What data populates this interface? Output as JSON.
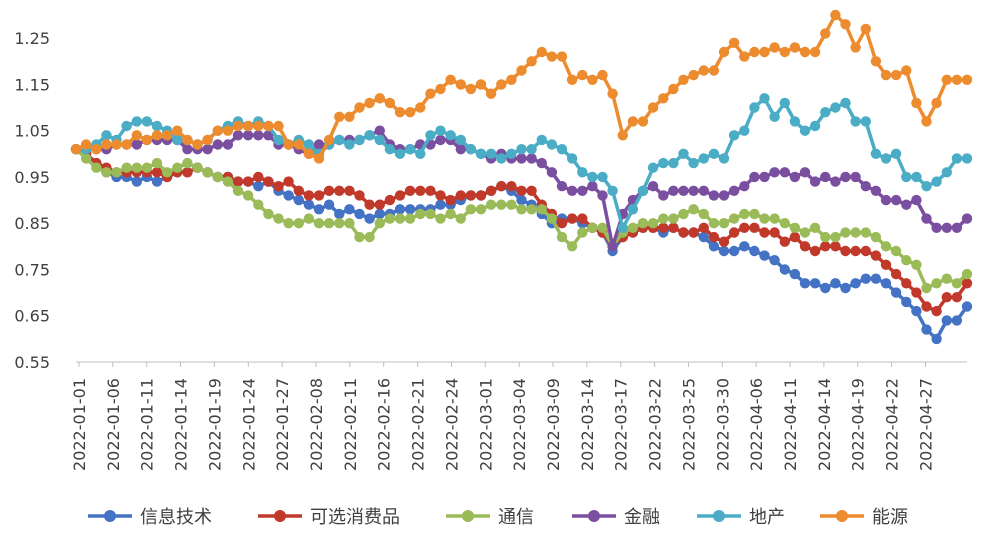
{
  "chart_data": {
    "type": "line",
    "title": "",
    "xlabel": "",
    "ylabel": "",
    "ylim": [
      0.55,
      1.3
    ],
    "yticks": [
      "0.55",
      "0.65",
      "0.75",
      "0.85",
      "0.95",
      "1.05",
      "1.15",
      "1.25"
    ],
    "x_tick_labels": [
      "2022-01-01",
      "2022-01-06",
      "2022-01-11",
      "2022-01-14",
      "2022-01-19",
      "2022-01-24",
      "2022-01-27",
      "2022-02-08",
      "2022-02-11",
      "2022-02-16",
      "2022-02-21",
      "2022-02-24",
      "2022-03-01",
      "2022-03-04",
      "2022-03-09",
      "2022-03-14",
      "2022-03-17",
      "2022-03-22",
      "2022-03-25",
      "2022-03-30",
      "2022-04-06",
      "2022-04-11",
      "2022-04-14",
      "2022-04-19",
      "2022-04-22",
      "2022-04-27"
    ],
    "legend_position": "bottom",
    "series": [
      {
        "name": "信息技术",
        "color": "#4472C4",
        "values": [
          1.01,
          1.0,
          0.98,
          0.96,
          0.95,
          0.95,
          0.94,
          0.95,
          0.94,
          0.95,
          0.96,
          0.96,
          0.97,
          0.96,
          0.95,
          0.95,
          0.94,
          0.94,
          0.93,
          0.94,
          0.92,
          0.91,
          0.9,
          0.89,
          0.88,
          0.89,
          0.87,
          0.88,
          0.87,
          0.86,
          0.87,
          0.87,
          0.88,
          0.88,
          0.88,
          0.88,
          0.89,
          0.89,
          0.9,
          0.91,
          0.91,
          0.92,
          0.93,
          0.92,
          0.9,
          0.89,
          0.87,
          0.85,
          0.86,
          0.86,
          0.85,
          0.84,
          0.83,
          0.79,
          0.82,
          0.83,
          0.84,
          0.84,
          0.83,
          0.84,
          0.83,
          0.83,
          0.82,
          0.8,
          0.79,
          0.79,
          0.8,
          0.79,
          0.78,
          0.77,
          0.75,
          0.74,
          0.72,
          0.72,
          0.71,
          0.72,
          0.71,
          0.72,
          0.73,
          0.73,
          0.72,
          0.7,
          0.68,
          0.66,
          0.62,
          0.6,
          0.64,
          0.64,
          0.67
        ]
      },
      {
        "name": "可选消费品",
        "color": "#C0392B",
        "values": [
          1.01,
          1.0,
          0.98,
          0.97,
          0.96,
          0.96,
          0.96,
          0.96,
          0.96,
          0.95,
          0.96,
          0.96,
          0.97,
          0.96,
          0.95,
          0.95,
          0.94,
          0.94,
          0.95,
          0.94,
          0.93,
          0.94,
          0.92,
          0.91,
          0.91,
          0.92,
          0.92,
          0.92,
          0.91,
          0.89,
          0.89,
          0.9,
          0.91,
          0.92,
          0.92,
          0.92,
          0.91,
          0.9,
          0.91,
          0.91,
          0.91,
          0.92,
          0.93,
          0.93,
          0.92,
          0.92,
          0.89,
          0.87,
          0.85,
          0.86,
          0.86,
          0.84,
          0.83,
          0.8,
          0.82,
          0.83,
          0.84,
          0.84,
          0.84,
          0.84,
          0.83,
          0.83,
          0.84,
          0.82,
          0.81,
          0.83,
          0.84,
          0.84,
          0.83,
          0.83,
          0.81,
          0.82,
          0.8,
          0.79,
          0.8,
          0.8,
          0.79,
          0.79,
          0.79,
          0.78,
          0.76,
          0.74,
          0.72,
          0.7,
          0.67,
          0.66,
          0.69,
          0.69,
          0.72
        ]
      },
      {
        "name": "通信",
        "color": "#9BBB59",
        "values": [
          1.01,
          0.99,
          0.97,
          0.96,
          0.96,
          0.97,
          0.97,
          0.97,
          0.98,
          0.96,
          0.97,
          0.98,
          0.97,
          0.96,
          0.95,
          0.94,
          0.92,
          0.91,
          0.89,
          0.87,
          0.86,
          0.85,
          0.85,
          0.86,
          0.85,
          0.85,
          0.85,
          0.85,
          0.82,
          0.82,
          0.85,
          0.86,
          0.86,
          0.86,
          0.87,
          0.87,
          0.86,
          0.87,
          0.86,
          0.88,
          0.88,
          0.89,
          0.89,
          0.89,
          0.88,
          0.88,
          0.88,
          0.86,
          0.82,
          0.8,
          0.83,
          0.84,
          0.84,
          0.8,
          0.83,
          0.84,
          0.85,
          0.85,
          0.86,
          0.86,
          0.87,
          0.88,
          0.87,
          0.85,
          0.85,
          0.86,
          0.87,
          0.87,
          0.86,
          0.86,
          0.85,
          0.84,
          0.83,
          0.84,
          0.82,
          0.82,
          0.83,
          0.83,
          0.83,
          0.82,
          0.8,
          0.79,
          0.77,
          0.76,
          0.71,
          0.72,
          0.73,
          0.72,
          0.74
        ]
      },
      {
        "name": "金融",
        "color": "#7B4FA0",
        "values": [
          1.01,
          1.01,
          1.01,
          1.01,
          1.02,
          1.02,
          1.02,
          1.03,
          1.03,
          1.03,
          1.03,
          1.01,
          1.01,
          1.01,
          1.02,
          1.02,
          1.04,
          1.04,
          1.04,
          1.04,
          1.02,
          1.02,
          1.01,
          1.0,
          1.02,
          1.02,
          1.03,
          1.03,
          1.03,
          1.04,
          1.05,
          1.02,
          1.01,
          1.01,
          1.02,
          1.02,
          1.03,
          1.03,
          1.01,
          1.01,
          1.0,
          0.99,
          1.0,
          0.99,
          0.99,
          0.99,
          0.98,
          0.96,
          0.93,
          0.92,
          0.92,
          0.93,
          0.91,
          0.8,
          0.87,
          0.9,
          0.92,
          0.93,
          0.91,
          0.92,
          0.92,
          0.92,
          0.92,
          0.91,
          0.91,
          0.92,
          0.93,
          0.95,
          0.95,
          0.96,
          0.96,
          0.95,
          0.96,
          0.94,
          0.95,
          0.94,
          0.95,
          0.95,
          0.93,
          0.92,
          0.9,
          0.9,
          0.89,
          0.9,
          0.86,
          0.84,
          0.84,
          0.84,
          0.86
        ]
      },
      {
        "name": "地产",
        "color": "#4BACC6",
        "values": [
          1.01,
          1.01,
          1.02,
          1.04,
          1.03,
          1.06,
          1.07,
          1.07,
          1.06,
          1.05,
          1.03,
          1.03,
          1.02,
          1.03,
          1.05,
          1.06,
          1.07,
          1.06,
          1.07,
          1.06,
          1.03,
          1.02,
          1.03,
          1.02,
          1.0,
          1.02,
          1.03,
          1.02,
          1.03,
          1.04,
          1.03,
          1.01,
          1.0,
          1.01,
          1.0,
          1.04,
          1.05,
          1.04,
          1.03,
          1.01,
          1.0,
          1.0,
          0.99,
          1.0,
          1.01,
          1.01,
          1.03,
          1.02,
          1.01,
          0.99,
          0.96,
          0.95,
          0.95,
          0.92,
          0.84,
          0.88,
          0.92,
          0.97,
          0.98,
          0.98,
          1.0,
          0.98,
          0.99,
          1.0,
          0.99,
          1.04,
          1.05,
          1.1,
          1.12,
          1.08,
          1.11,
          1.07,
          1.05,
          1.06,
          1.09,
          1.1,
          1.11,
          1.07,
          1.07,
          1.0,
          0.99,
          1.0,
          0.95,
          0.95,
          0.93,
          0.94,
          0.96,
          0.99,
          0.99
        ]
      },
      {
        "name": "能源",
        "color": "#ED8B2F",
        "values": [
          1.01,
          1.02,
          1.01,
          1.02,
          1.02,
          1.02,
          1.04,
          1.03,
          1.04,
          1.04,
          1.05,
          1.03,
          1.02,
          1.03,
          1.05,
          1.05,
          1.06,
          1.06,
          1.06,
          1.06,
          1.06,
          1.02,
          1.02,
          1.0,
          0.99,
          1.03,
          1.08,
          1.08,
          1.1,
          1.11,
          1.12,
          1.11,
          1.09,
          1.09,
          1.1,
          1.13,
          1.14,
          1.16,
          1.15,
          1.14,
          1.15,
          1.13,
          1.15,
          1.16,
          1.18,
          1.2,
          1.22,
          1.21,
          1.21,
          1.16,
          1.17,
          1.16,
          1.17,
          1.13,
          1.04,
          1.07,
          1.07,
          1.1,
          1.12,
          1.14,
          1.16,
          1.17,
          1.18,
          1.18,
          1.22,
          1.24,
          1.21,
          1.22,
          1.22,
          1.23,
          1.22,
          1.23,
          1.22,
          1.22,
          1.26,
          1.3,
          1.28,
          1.23,
          1.27,
          1.2,
          1.17,
          1.17,
          1.18,
          1.11,
          1.07,
          1.11,
          1.16,
          1.16,
          1.16
        ]
      }
    ]
  }
}
